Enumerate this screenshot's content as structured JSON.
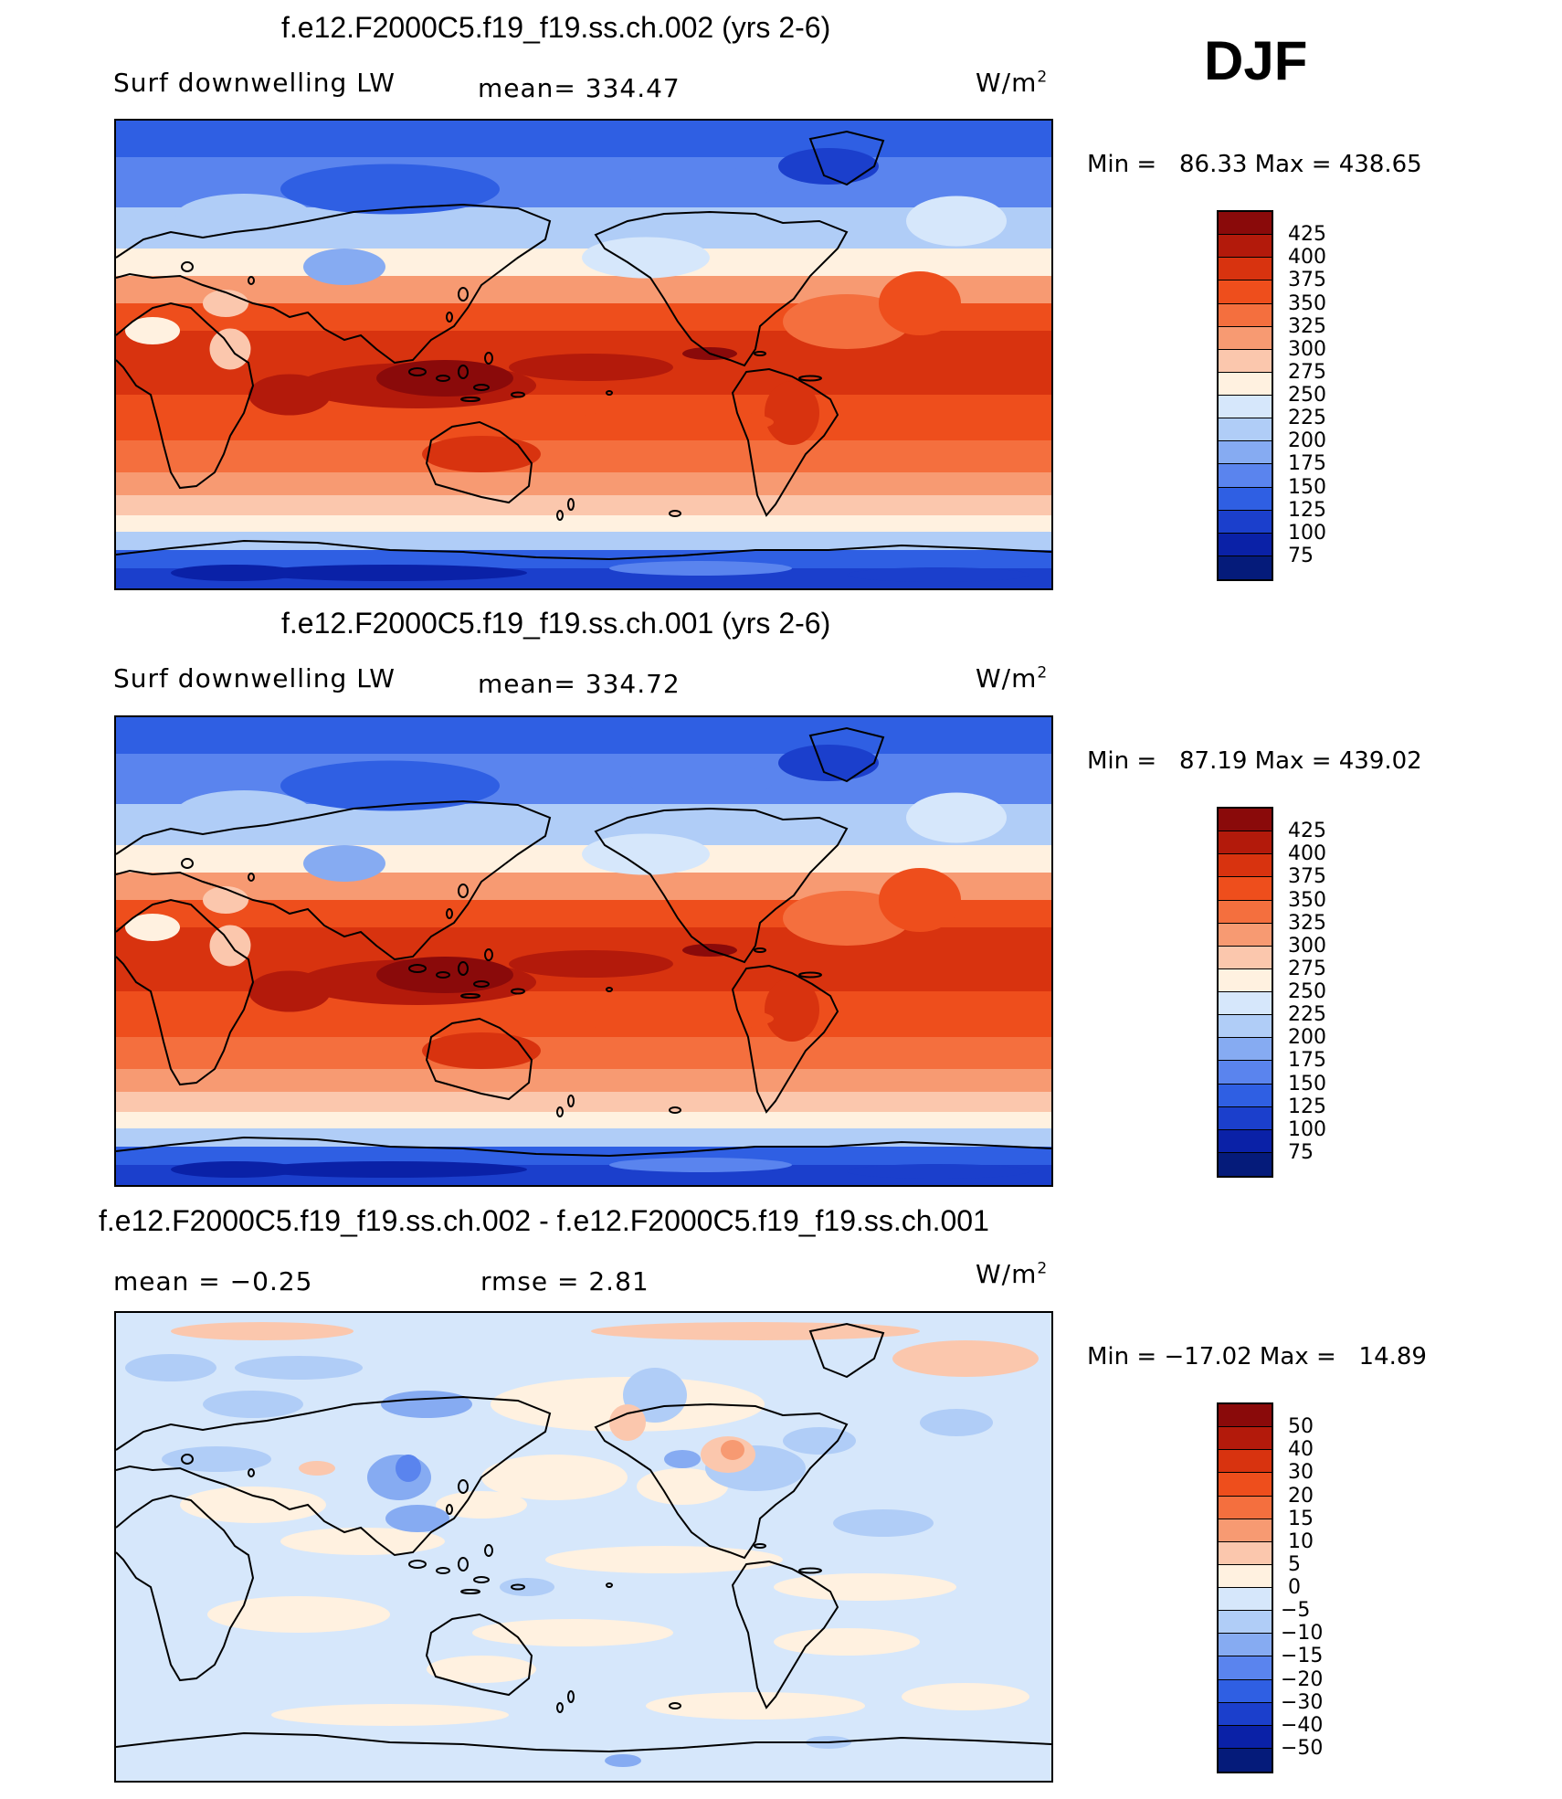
{
  "season": "DJF",
  "panels": [
    {
      "title": "f.e12.F2000C5.f19_f19.ss.ch.002 (yrs 2-6)",
      "left_label": "Surf downwelling LW",
      "center_label": "mean= 334.47",
      "units": "W/m",
      "units_sup": "2",
      "minmax": "Min =   86.33 Max = 438.65",
      "colorbar_labels": [
        "425",
        "400",
        "375",
        "350",
        "325",
        "300",
        "275",
        "250",
        "225",
        "200",
        "175",
        "150",
        "125",
        "100",
        "75"
      ],
      "colorbar_colors": [
        "#8a0a0a",
        "#b31a0b",
        "#d8330f",
        "#ee4e1c",
        "#f46f3e",
        "#f79a72",
        "#fbc7ad",
        "#fff1e0",
        "#d6e7fb",
        "#b0cdf7",
        "#86abf2",
        "#5a84ee",
        "#2f5fe3",
        "#1b3fcc",
        "#0a21a7",
        "#051b7a"
      ],
      "type": "absolute"
    },
    {
      "title": "f.e12.F2000C5.f19_f19.ss.ch.001 (yrs 2-6)",
      "left_label": "Surf downwelling LW",
      "center_label": "mean= 334.72",
      "units": "W/m",
      "units_sup": "2",
      "minmax": "Min =   87.19 Max = 439.02",
      "colorbar_labels": [
        "425",
        "400",
        "375",
        "350",
        "325",
        "300",
        "275",
        "250",
        "225",
        "200",
        "175",
        "150",
        "125",
        "100",
        "75"
      ],
      "colorbar_colors": [
        "#8a0a0a",
        "#b31a0b",
        "#d8330f",
        "#ee4e1c",
        "#f46f3e",
        "#f79a72",
        "#fbc7ad",
        "#fff1e0",
        "#d6e7fb",
        "#b0cdf7",
        "#86abf2",
        "#5a84ee",
        "#2f5fe3",
        "#1b3fcc",
        "#0a21a7",
        "#051b7a"
      ],
      "type": "absolute"
    },
    {
      "title": "f.e12.F2000C5.f19_f19.ss.ch.002 - f.e12.F2000C5.f19_f19.ss.ch.001",
      "left_label": "mean =   −0.25",
      "center_label": "rmse =     2.81",
      "units": "W/m",
      "units_sup": "2",
      "minmax": "Min = −17.02 Max =   14.89",
      "colorbar_labels": [
        "50",
        "40",
        "30",
        "20",
        "15",
        "10",
        "5",
        "0",
        "−5",
        "−10",
        "−15",
        "−20",
        "−30",
        "−40",
        "−50"
      ],
      "colorbar_colors": [
        "#8a0a0a",
        "#b31a0b",
        "#d8330f",
        "#ee4e1c",
        "#f46f3e",
        "#f79a72",
        "#fbc7ad",
        "#fff1e0",
        "#d6e7fb",
        "#b0cdf7",
        "#86abf2",
        "#5a84ee",
        "#2f5fe3",
        "#1b3fcc",
        "#0a21a7",
        "#051b7a"
      ],
      "type": "difference"
    }
  ]
}
